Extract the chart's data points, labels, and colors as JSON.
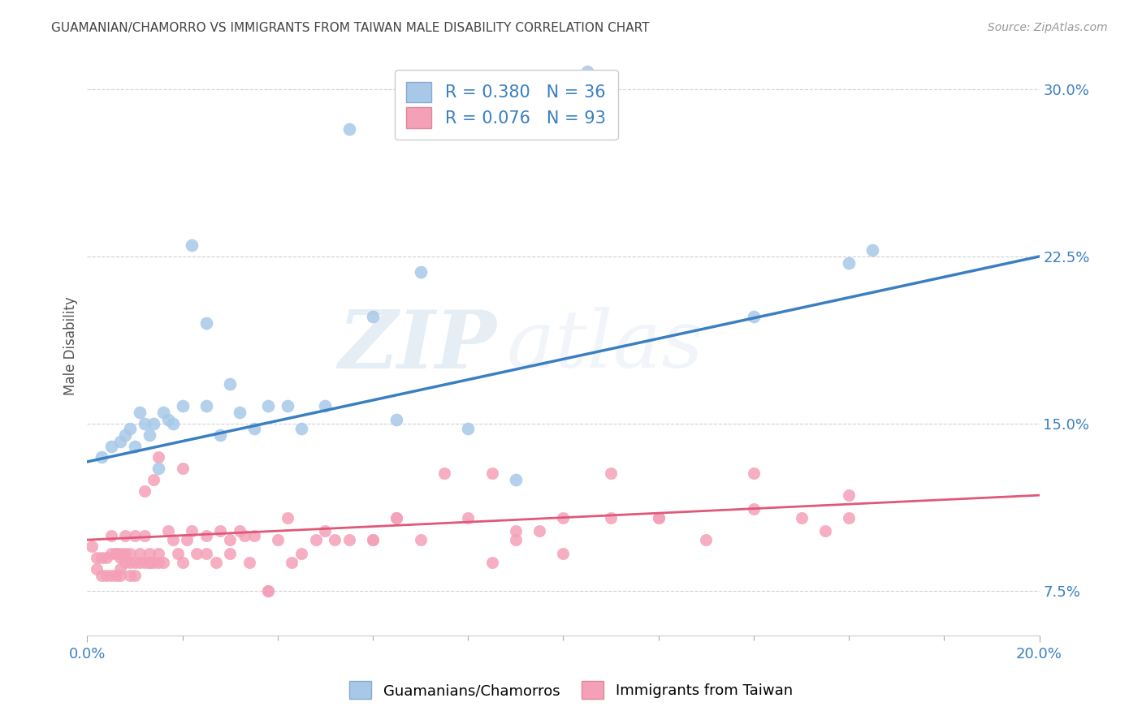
{
  "title": "GUAMANIAN/CHAMORRO VS IMMIGRANTS FROM TAIWAN MALE DISABILITY CORRELATION CHART",
  "source": "Source: ZipAtlas.com",
  "ylabel": "Male Disability",
  "legend_label_blue": "Guamanians/Chamorros",
  "legend_label_pink": "Immigrants from Taiwan",
  "R_blue": 0.38,
  "N_blue": 36,
  "R_pink": 0.076,
  "N_pink": 93,
  "blue_color": "#a8c8e8",
  "pink_color": "#f4a0b8",
  "line_blue": "#3a7fc1",
  "line_pink": "#e05878",
  "text_blue": "#3a7fc1",
  "xlim": [
    0.0,
    0.2
  ],
  "ylim": [
    0.055,
    0.315
  ],
  "yticks": [
    0.075,
    0.15,
    0.225,
    0.3
  ],
  "ytick_labels": [
    "7.5%",
    "15.0%",
    "22.5%",
    "30.0%"
  ],
  "xtick_labels_show": [
    "0.0%",
    "20.0%"
  ],
  "watermark_zip": "ZIP",
  "watermark_atlas": "atlas",
  "blue_scatter_x": [
    0.003,
    0.005,
    0.007,
    0.008,
    0.009,
    0.01,
    0.011,
    0.012,
    0.013,
    0.014,
    0.015,
    0.016,
    0.017,
    0.018,
    0.02,
    0.022,
    0.025,
    0.025,
    0.028,
    0.03,
    0.032,
    0.035,
    0.038,
    0.042,
    0.045,
    0.05,
    0.055,
    0.06,
    0.065,
    0.07,
    0.08,
    0.09,
    0.105,
    0.14,
    0.16,
    0.165
  ],
  "blue_scatter_y": [
    0.135,
    0.14,
    0.142,
    0.145,
    0.148,
    0.14,
    0.155,
    0.15,
    0.145,
    0.15,
    0.13,
    0.155,
    0.152,
    0.15,
    0.158,
    0.23,
    0.195,
    0.158,
    0.145,
    0.168,
    0.155,
    0.148,
    0.158,
    0.158,
    0.148,
    0.158,
    0.282,
    0.198,
    0.152,
    0.218,
    0.148,
    0.125,
    0.308,
    0.198,
    0.222,
    0.228
  ],
  "pink_scatter_x": [
    0.001,
    0.002,
    0.002,
    0.003,
    0.003,
    0.004,
    0.004,
    0.005,
    0.005,
    0.005,
    0.006,
    0.006,
    0.006,
    0.007,
    0.007,
    0.007,
    0.007,
    0.008,
    0.008,
    0.008,
    0.009,
    0.009,
    0.009,
    0.01,
    0.01,
    0.01,
    0.011,
    0.011,
    0.012,
    0.012,
    0.012,
    0.013,
    0.013,
    0.013,
    0.014,
    0.014,
    0.015,
    0.015,
    0.015,
    0.016,
    0.017,
    0.018,
    0.019,
    0.02,
    0.02,
    0.021,
    0.022,
    0.023,
    0.025,
    0.025,
    0.027,
    0.028,
    0.03,
    0.03,
    0.032,
    0.033,
    0.034,
    0.035,
    0.038,
    0.038,
    0.04,
    0.042,
    0.043,
    0.045,
    0.048,
    0.05,
    0.052,
    0.055,
    0.06,
    0.065,
    0.07,
    0.08,
    0.085,
    0.09,
    0.095,
    0.1,
    0.11,
    0.12,
    0.13,
    0.14,
    0.15,
    0.155,
    0.16,
    0.06,
    0.065,
    0.075,
    0.085,
    0.09,
    0.1,
    0.11,
    0.12,
    0.14,
    0.16
  ],
  "pink_scatter_y": [
    0.095,
    0.09,
    0.085,
    0.09,
    0.082,
    0.09,
    0.082,
    0.092,
    0.1,
    0.082,
    0.092,
    0.082,
    0.092,
    0.092,
    0.085,
    0.082,
    0.09,
    0.1,
    0.088,
    0.092,
    0.088,
    0.082,
    0.092,
    0.088,
    0.1,
    0.082,
    0.088,
    0.092,
    0.12,
    0.088,
    0.1,
    0.088,
    0.092,
    0.088,
    0.125,
    0.088,
    0.135,
    0.092,
    0.088,
    0.088,
    0.102,
    0.098,
    0.092,
    0.088,
    0.13,
    0.098,
    0.102,
    0.092,
    0.1,
    0.092,
    0.088,
    0.102,
    0.098,
    0.092,
    0.102,
    0.1,
    0.088,
    0.1,
    0.075,
    0.075,
    0.098,
    0.108,
    0.088,
    0.092,
    0.098,
    0.102,
    0.098,
    0.098,
    0.098,
    0.108,
    0.098,
    0.108,
    0.088,
    0.098,
    0.102,
    0.092,
    0.108,
    0.108,
    0.098,
    0.112,
    0.108,
    0.102,
    0.108,
    0.098,
    0.108,
    0.128,
    0.128,
    0.102,
    0.108,
    0.128,
    0.108,
    0.128,
    0.118
  ],
  "blue_line_x": [
    0.0,
    0.2
  ],
  "blue_line_y": [
    0.133,
    0.225
  ],
  "pink_line_x": [
    0.0,
    0.2
  ],
  "pink_line_y": [
    0.098,
    0.118
  ]
}
